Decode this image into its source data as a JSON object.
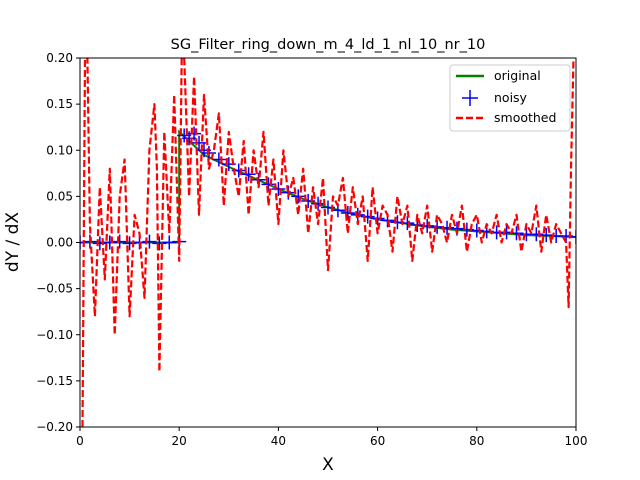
{
  "chart_data": {
    "type": "line",
    "title": "SG_Filter_ring_down_m_4_ld_1_nl_10_nr_10",
    "xlabel": "X",
    "ylabel": "dY / dX",
    "xlim": [
      0,
      100
    ],
    "ylim": [
      -0.2,
      0.2
    ],
    "xticks": [
      "0",
      "20",
      "40",
      "60",
      "80",
      "100"
    ],
    "yticks": [
      "−0.20",
      "−0.15",
      "−0.10",
      "−0.05",
      "0.00",
      "0.05",
      "0.10",
      "0.15",
      "0.20"
    ],
    "grid": false,
    "legend_position": "top-right",
    "colors": {
      "original": "#008000",
      "noisy": "#0000ff",
      "smoothed": "#ff0000"
    },
    "series": [
      {
        "name": "original",
        "style": "solid line",
        "x": [
          0,
          20,
          20,
          25,
          30,
          35,
          40,
          45,
          50,
          55,
          60,
          65,
          70,
          75,
          80,
          85,
          90,
          95,
          100
        ],
        "y": [
          0,
          0,
          0.12,
          0.095,
          0.082,
          0.07,
          0.058,
          0.047,
          0.038,
          0.031,
          0.025,
          0.021,
          0.017,
          0.014,
          0.012,
          0.01,
          0.008,
          0.007,
          0.006
        ]
      },
      {
        "name": "noisy",
        "style": "plus markers",
        "x": [
          0,
          2,
          4,
          6,
          8,
          10,
          12,
          14,
          16,
          18,
          20,
          21,
          22,
          23,
          24,
          25,
          26,
          28,
          30,
          32,
          34,
          36,
          38,
          40,
          42,
          44,
          46,
          48,
          50,
          52,
          54,
          56,
          58,
          60,
          62,
          64,
          66,
          68,
          70,
          72,
          74,
          76,
          78,
          80,
          82,
          84,
          86,
          88,
          90,
          92,
          94,
          96,
          98,
          100
        ],
        "y": [
          0,
          0.001,
          -0.001,
          0,
          0.001,
          -0.001,
          0,
          0.001,
          -0.001,
          0,
          0.001,
          0.116,
          0.113,
          0.118,
          0.108,
          0.1,
          0.097,
          0.09,
          0.085,
          0.078,
          0.074,
          0.068,
          0.063,
          0.058,
          0.054,
          0.05,
          0.045,
          0.042,
          0.038,
          0.035,
          0.032,
          0.03,
          0.028,
          0.026,
          0.024,
          0.022,
          0.021,
          0.019,
          0.018,
          0.017,
          0.016,
          0.015,
          0.014,
          0.013,
          0.012,
          0.011,
          0.011,
          0.01,
          0.009,
          0.009,
          0.008,
          0.007,
          0.007,
          0.006
        ]
      },
      {
        "name": "smoothed",
        "style": "dashed line",
        "x": [
          0.5,
          1,
          1.5,
          2,
          3,
          4,
          5,
          6,
          7,
          8,
          9,
          10,
          11,
          12,
          13,
          14,
          15,
          15.5,
          16,
          17,
          18,
          19,
          20,
          20.5,
          21,
          22,
          23,
          24,
          25,
          26,
          27,
          28,
          29,
          30,
          31,
          32,
          33,
          34,
          35,
          36,
          37,
          38,
          39,
          40,
          41,
          42,
          43,
          44,
          45,
          46,
          47,
          48,
          49,
          50,
          51,
          52,
          53,
          54,
          55,
          56,
          57,
          58,
          59,
          60,
          61,
          62,
          63,
          64,
          65,
          66,
          67,
          68,
          69,
          70,
          71,
          72,
          73,
          74,
          75,
          76,
          77,
          78,
          79,
          80,
          81,
          82,
          83,
          84,
          85,
          86,
          87,
          88,
          89,
          90,
          91,
          92,
          93,
          94,
          95,
          96,
          97,
          98,
          98.5,
          99,
          99.5
        ],
        "y": [
          -0.2,
          0.2,
          0.2,
          0.02,
          -0.08,
          0.06,
          -0.04,
          0.08,
          -0.1,
          0.05,
          0.09,
          -0.08,
          0.03,
          0.01,
          -0.06,
          0.1,
          0.15,
          0.08,
          -0.14,
          0.12,
          0.01,
          0.16,
          -0.02,
          0.2,
          0.2,
          0.05,
          0.18,
          0.03,
          0.16,
          0.08,
          0.1,
          0.14,
          0.04,
          0.12,
          0.08,
          0.05,
          0.11,
          0.03,
          0.1,
          0.06,
          0.12,
          0.04,
          0.09,
          0.02,
          0.1,
          0.05,
          0.07,
          0.03,
          0.08,
          0.01,
          0.06,
          0.02,
          0.07,
          -0.03,
          0.05,
          0.04,
          0.07,
          0.01,
          0.06,
          0.02,
          0.05,
          -0.02,
          0.06,
          0.01,
          0.04,
          0.03,
          -0.01,
          0.05,
          0.02,
          0.04,
          -0.02,
          0.03,
          0.01,
          0.04,
          -0.01,
          0.03,
          0.02,
          0.0,
          0.03,
          0.01,
          0.04,
          -0.01,
          0.02,
          0.03,
          0.0,
          0.02,
          0.01,
          0.03,
          0.0,
          0.02,
          0.01,
          0.03,
          -0.01,
          0.02,
          0.01,
          0.04,
          -0.01,
          0.03,
          0.0,
          0.02,
          0.01,
          0.0,
          -0.07,
          0.08,
          0.2
        ]
      }
    ]
  }
}
